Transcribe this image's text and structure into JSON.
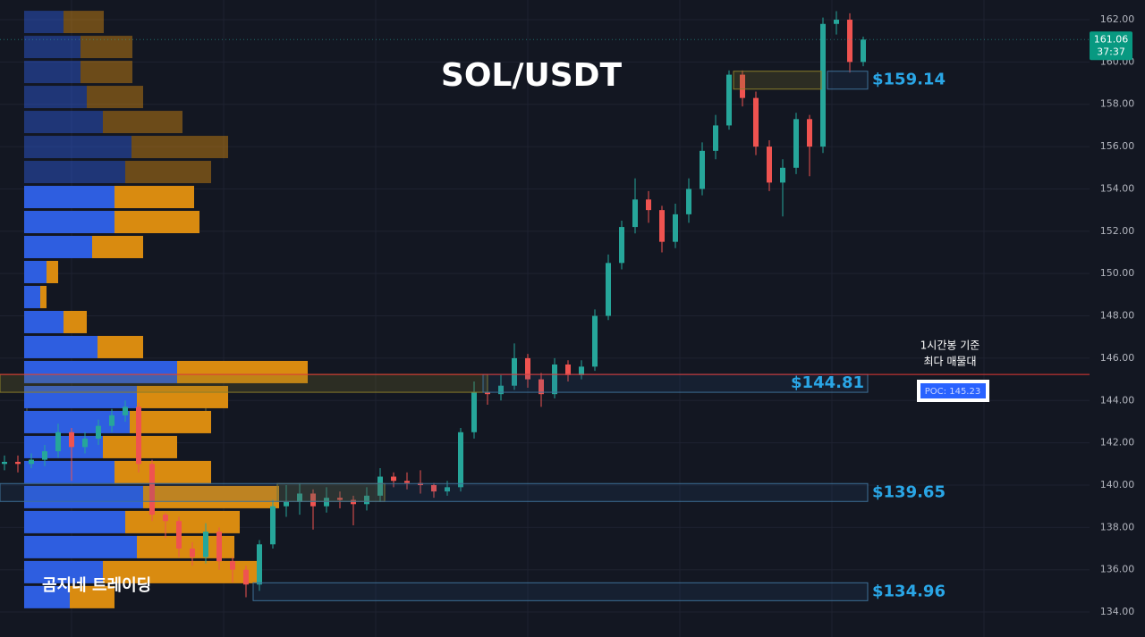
{
  "chart_data": {
    "type": "candlestick",
    "title": "SOL/USDT",
    "watermark": "곰지네 트레이딩",
    "up_color": "#26a69a",
    "down_color": "#ef5350",
    "grid": true,
    "ylim": [
      132.82,
      162.93
    ],
    "yticks": [
      {
        "value": 134,
        "label": "134.00"
      },
      {
        "value": 136,
        "label": "136.00"
      },
      {
        "value": 138,
        "label": "138.00"
      },
      {
        "value": 140,
        "label": "140.00"
      },
      {
        "value": 142,
        "label": "142.00"
      },
      {
        "value": 144,
        "label": "144.00"
      },
      {
        "value": 146,
        "label": "146.00"
      },
      {
        "value": 148,
        "label": "148.00"
      },
      {
        "value": 150,
        "label": "150.00"
      },
      {
        "value": 152,
        "label": "152.00"
      },
      {
        "value": 154,
        "label": "154.00"
      },
      {
        "value": 156,
        "label": "156.00"
      },
      {
        "value": 158,
        "label": "158.00"
      },
      {
        "value": 160,
        "label": "160.00"
      },
      {
        "value": 162,
        "label": "162.00"
      }
    ],
    "open": [
      141.0,
      141.1,
      141.0,
      141.2,
      141.6,
      142.5,
      141.8,
      142.2,
      142.8,
      143.3,
      143.7,
      141.0,
      138.6,
      138.3,
      137.0,
      136.6,
      137.8,
      136.4,
      136.0,
      135.3,
      137.2,
      139.0,
      139.2,
      139.6,
      139.0,
      139.4,
      139.3,
      139.1,
      139.5,
      140.4,
      140.2,
      140.1,
      140.0,
      139.7,
      139.9,
      142.5,
      144.4,
      144.3,
      144.7,
      146.0,
      145.0,
      144.3,
      145.7,
      145.2,
      145.6,
      148.0,
      150.5,
      152.2,
      153.5,
      153.0,
      151.5,
      152.8,
      154.0,
      155.8,
      157.0,
      159.4,
      158.3,
      156.0,
      154.3,
      155.0,
      157.3,
      156.0,
      161.8,
      162.0,
      160.0
    ],
    "high": [
      141.4,
      141.4,
      141.5,
      141.9,
      142.9,
      142.7,
      142.5,
      143.1,
      143.6,
      144.0,
      143.9,
      141.2,
      138.7,
      138.5,
      137.3,
      138.2,
      138.0,
      136.6,
      136.2,
      137.4,
      139.3,
      140.0,
      140.1,
      139.8,
      139.9,
      139.7,
      139.5,
      139.9,
      140.8,
      140.6,
      140.6,
      140.7,
      140.1,
      140.2,
      142.7,
      144.9,
      144.9,
      145.2,
      146.7,
      146.2,
      145.3,
      146.0,
      145.9,
      145.9,
      148.3,
      150.9,
      152.5,
      154.5,
      153.9,
      153.2,
      153.3,
      154.5,
      156.2,
      157.5,
      159.6,
      159.6,
      158.6,
      156.3,
      155.4,
      157.6,
      157.5,
      162.1,
      162.4,
      162.3,
      161.2
    ],
    "low": [
      140.7,
      140.6,
      140.8,
      140.9,
      141.3,
      140.2,
      141.5,
      141.9,
      142.5,
      143.0,
      140.6,
      138.3,
      137.5,
      136.6,
      136.2,
      136.3,
      136.0,
      135.4,
      134.7,
      135.0,
      137.0,
      138.5,
      138.6,
      137.9,
      138.7,
      138.9,
      138.1,
      138.8,
      139.2,
      139.9,
      139.8,
      139.6,
      139.4,
      139.5,
      139.7,
      142.2,
      143.8,
      144.0,
      144.5,
      144.6,
      143.7,
      144.1,
      144.9,
      145.0,
      145.4,
      147.8,
      150.2,
      151.9,
      152.4,
      151.0,
      151.2,
      152.4,
      153.7,
      155.4,
      156.8,
      157.9,
      155.6,
      153.9,
      152.7,
      154.7,
      154.6,
      155.7,
      161.3,
      159.5,
      159.8
    ],
    "close": [
      141.1,
      141.0,
      141.2,
      141.6,
      142.5,
      141.8,
      142.2,
      142.8,
      143.3,
      143.7,
      141.0,
      138.6,
      138.3,
      137.0,
      136.6,
      137.8,
      136.4,
      136.0,
      135.3,
      137.2,
      139.0,
      139.2,
      139.6,
      139.0,
      139.4,
      139.3,
      139.1,
      139.5,
      140.4,
      140.2,
      140.1,
      140.0,
      139.7,
      139.9,
      142.5,
      144.4,
      144.3,
      144.7,
      146.0,
      145.0,
      144.3,
      145.7,
      145.2,
      145.6,
      148.0,
      150.5,
      152.2,
      153.5,
      153.0,
      151.5,
      152.8,
      154.0,
      155.8,
      157.0,
      159.4,
      158.3,
      156.0,
      154.3,
      155.0,
      157.3,
      156.0,
      161.8,
      162.0,
      160.0,
      161.06
    ],
    "volume_profile": {
      "range": [
        134.05,
        162.42
      ],
      "buy_color": "#2e5ee0",
      "sell_color": "#d98b10",
      "buy": [
        44,
        63,
        63,
        70,
        88,
        120,
        113,
        101,
        101,
        76,
        25,
        18,
        44,
        82,
        171,
        126,
        118,
        88,
        101,
        133,
        113,
        126,
        88,
        51
      ],
      "sell": [
        45,
        58,
        58,
        63,
        89,
        108,
        96,
        89,
        95,
        57,
        13,
        7,
        26,
        51,
        146,
        102,
        91,
        83,
        108,
        152,
        128,
        109,
        172,
        50
      ]
    },
    "levels": [
      {
        "value": 159.14,
        "label": "$159.14"
      },
      {
        "value": 144.81,
        "label": "$144.81"
      },
      {
        "value": 139.65,
        "label": "$139.65"
      },
      {
        "value": 134.96,
        "label": "$134.96"
      }
    ],
    "poc": {
      "value": 145.23,
      "label": "POC: 145.23",
      "note": [
        "1시간봉 기준",
        "최다 매물대"
      ],
      "color": "#e53935"
    },
    "last_price": 161.06,
    "countdown": "37:37"
  }
}
